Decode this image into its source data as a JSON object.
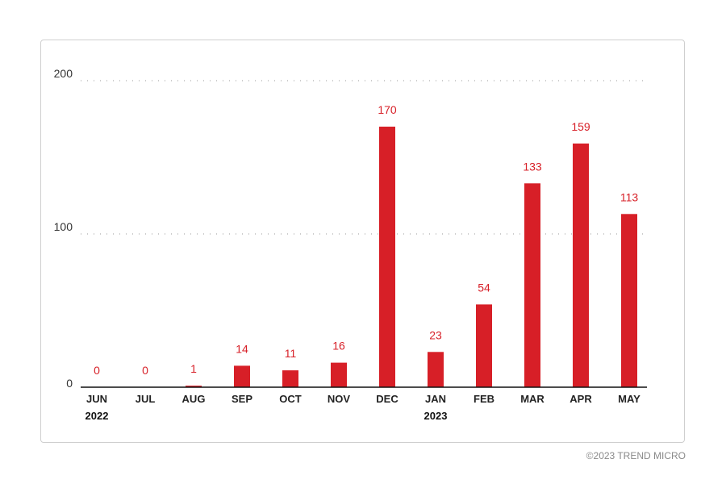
{
  "chart_data": {
    "type": "bar",
    "title": "",
    "xlabel": "",
    "ylabel": "",
    "categories": [
      "JUN",
      "JUL",
      "AUG",
      "SEP",
      "OCT",
      "NOV",
      "DEC",
      "JAN",
      "FEB",
      "MAR",
      "APR",
      "MAY"
    ],
    "year_labels": [
      {
        "category_index": 0,
        "text": "2022"
      },
      {
        "category_index": 7,
        "text": "2023"
      }
    ],
    "values": [
      0,
      0,
      1,
      14,
      11,
      16,
      170,
      23,
      54,
      133,
      159,
      113
    ],
    "ylim": [
      0,
      200
    ],
    "yticks": [
      0,
      100,
      200
    ],
    "grid": "dotted-horizontal",
    "legend": "none",
    "bar_color": "#d71f27",
    "label_color": "#d71f27"
  },
  "footer": {
    "copyright": "©2023 TREND MICRO"
  }
}
